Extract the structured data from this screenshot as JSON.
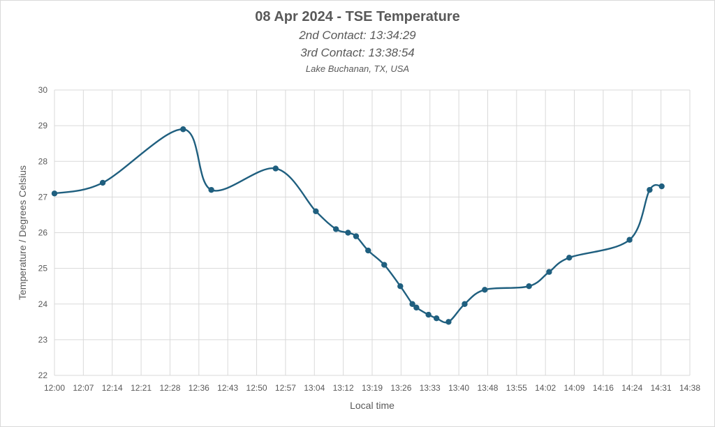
{
  "chart_data": {
    "type": "line",
    "title": "08 Apr 2024 - TSE Temperature",
    "subtitles": [
      "2nd Contact: 13:34:29",
      "3rd Contact: 13:38:54",
      "Lake Buchanan, TX, USA"
    ],
    "xlabel": "Local time",
    "ylabel": "Temperature / Degrees Celsius",
    "x_ticks": [
      "12:00",
      "12:07",
      "12:14",
      "12:21",
      "12:28",
      "12:36",
      "12:43",
      "12:50",
      "12:57",
      "13:04",
      "13:12",
      "13:19",
      "13:26",
      "13:33",
      "13:40",
      "13:48",
      "13:55",
      "14:02",
      "14:09",
      "14:16",
      "14:24",
      "14:31",
      "14:38"
    ],
    "y_ticks": [
      "22",
      "23",
      "24",
      "25",
      "26",
      "27",
      "28",
      "29",
      "30"
    ],
    "xlim": [
      "12:00",
      "14:38"
    ],
    "ylim": [
      22,
      30
    ],
    "grid": true,
    "color": "#1f5f7f",
    "series": [
      {
        "x": [
          "12:00",
          "12:12",
          "12:32",
          "12:39",
          "12:55",
          "13:05",
          "13:10",
          "13:13",
          "13:15",
          "13:18",
          "13:22",
          "13:26",
          "13:29",
          "13:30",
          "13:33",
          "13:35",
          "13:38",
          "13:42",
          "13:47",
          "13:58",
          "14:03",
          "14:08",
          "14:23",
          "14:28",
          "14:31"
        ],
        "y": [
          27.1,
          27.4,
          28.9,
          27.2,
          27.8,
          26.6,
          26.1,
          26.0,
          25.9,
          25.5,
          25.1,
          24.5,
          24.0,
          23.9,
          23.7,
          23.6,
          23.5,
          24.0,
          24.4,
          24.5,
          24.9,
          25.3,
          25.8,
          27.2,
          27.3
        ]
      }
    ]
  }
}
